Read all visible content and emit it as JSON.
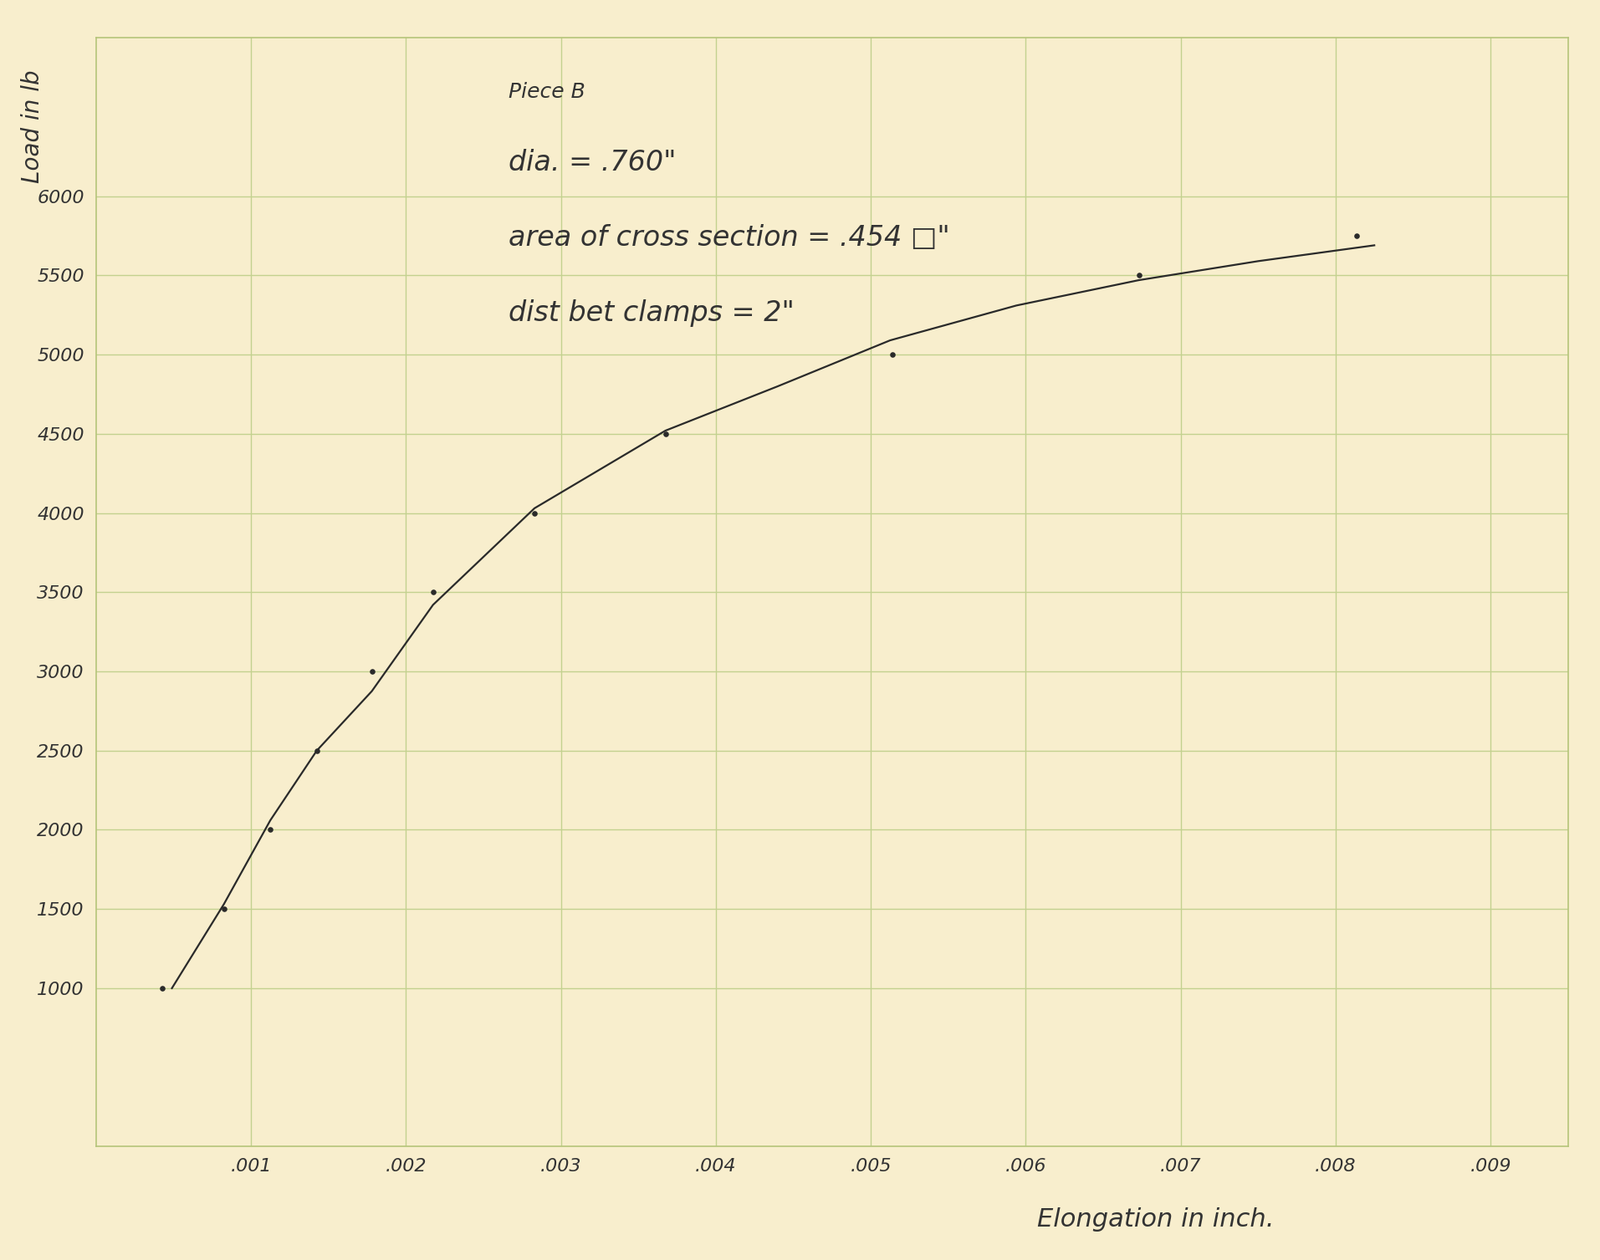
{
  "chart_data": {
    "type": "scatter",
    "annotations": [
      "Piece B",
      "dia. = .760\"",
      "area of cross section = .454 □\"",
      "dist bet clamps = 2\""
    ],
    "x_label": "Elongation in inch.",
    "y_label": "Load in lb",
    "xlim": [
      0,
      0.0095
    ],
    "xticks": [
      {
        "value": 0.001,
        "label": ".001"
      },
      {
        "value": 0.002,
        "label": ".002"
      },
      {
        "value": 0.003,
        "label": ".003"
      },
      {
        "value": 0.004,
        "label": ".004"
      },
      {
        "value": 0.005,
        "label": ".005"
      },
      {
        "value": 0.006,
        "label": ".006"
      },
      {
        "value": 0.007,
        "label": ".007"
      },
      {
        "value": 0.008,
        "label": ".008"
      },
      {
        "value": 0.009,
        "label": ".009"
      }
    ],
    "ylim": [
      0,
      7000
    ],
    "yticks": [
      1000,
      1500,
      2000,
      2500,
      3000,
      3500,
      4000,
      4500,
      5000,
      5500,
      6000
    ],
    "grid": true,
    "series": [
      {
        "type": "scatter",
        "color": "#2a2a2a",
        "marker": "dot",
        "x": [
          0.00043,
          0.000825,
          0.001125,
          0.001425,
          0.00178,
          0.002175,
          0.00283,
          0.003675,
          0.005138,
          0.00673,
          0.008138
        ],
        "values": [
          1000,
          1500,
          2000,
          2500,
          3000,
          3500,
          4000,
          4500,
          5000,
          5500,
          5750
        ]
      },
      {
        "type": "line",
        "color": "#2a2a2a",
        "line_style": "solid",
        "x": [
          0.00049,
          0.000825,
          0.001125,
          0.001425,
          0.00178,
          0.002175,
          0.00283,
          0.003675,
          0.0044,
          0.005125,
          0.00594,
          0.00673,
          0.0075,
          0.00825
        ],
        "values": [
          1000,
          1530,
          2060,
          2500,
          2875,
          3420,
          4030,
          4520,
          4800,
          5090,
          5310,
          5470,
          5590,
          5690
        ]
      }
    ]
  }
}
